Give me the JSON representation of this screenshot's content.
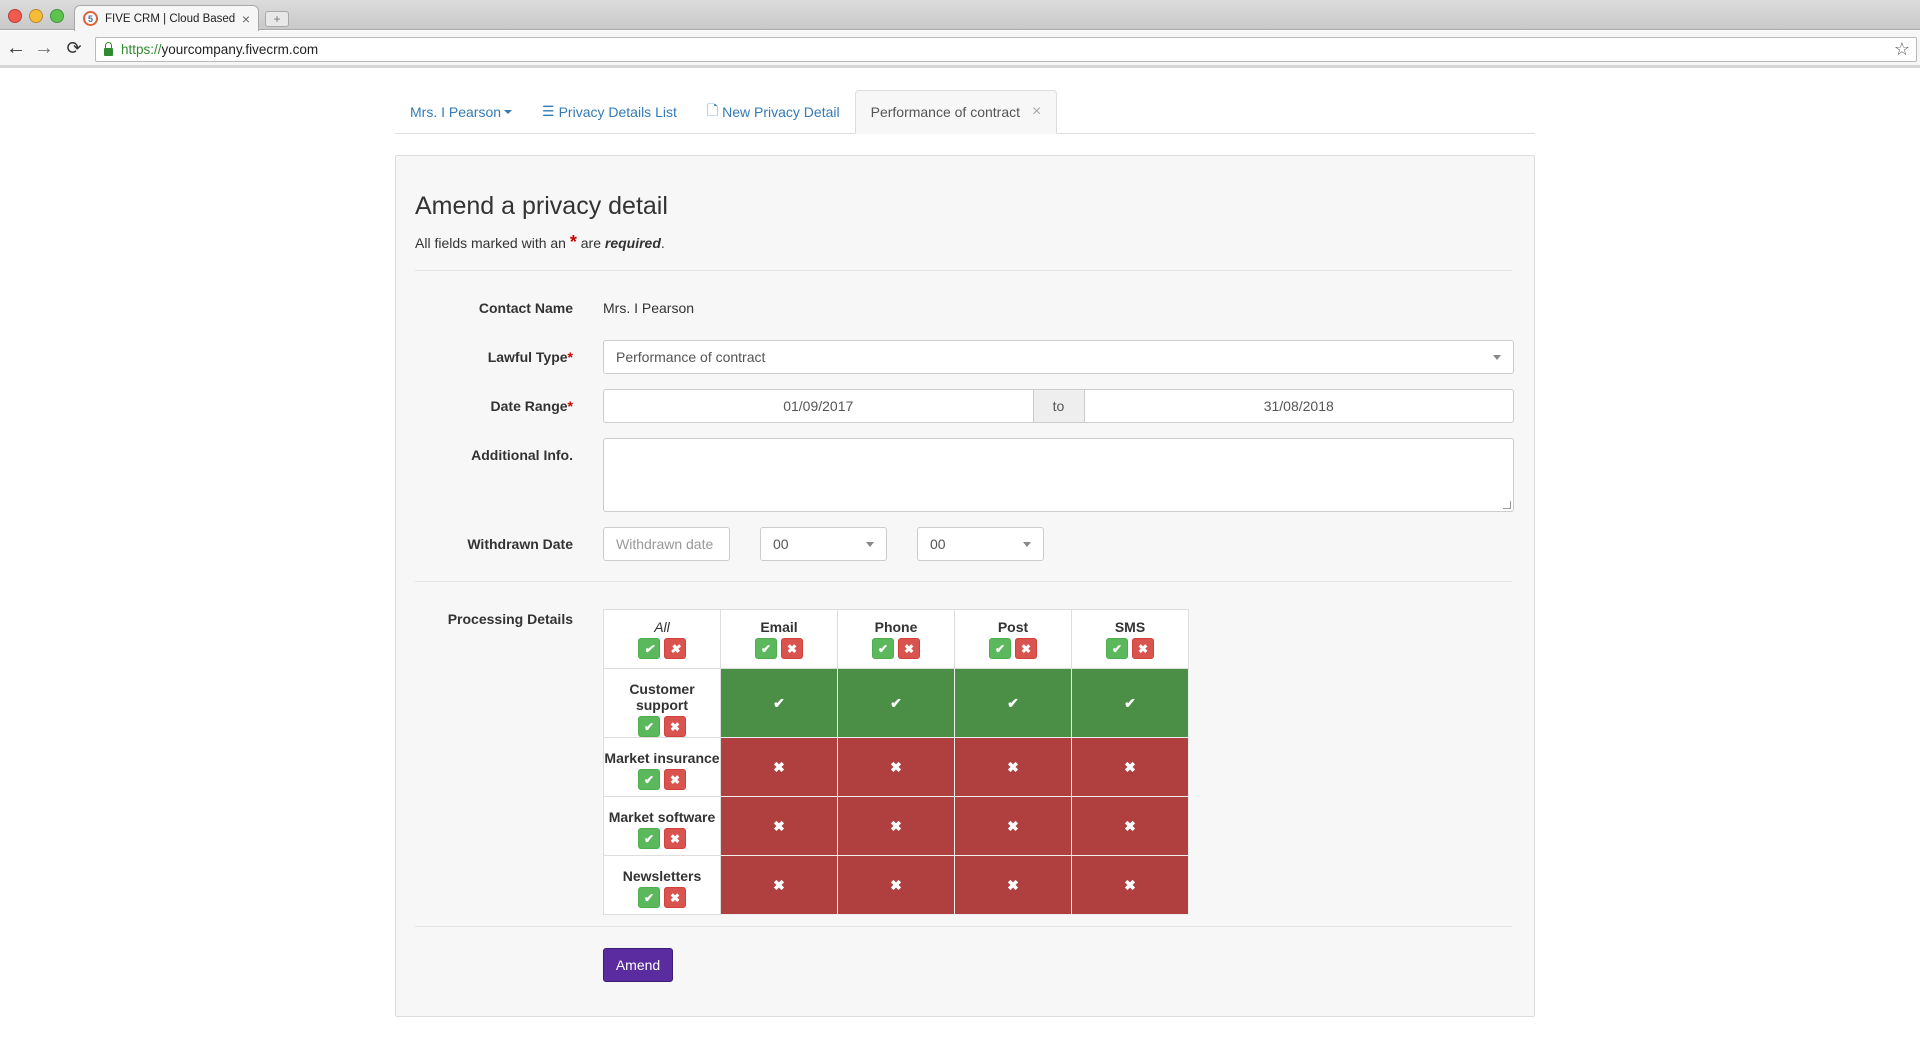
{
  "browser": {
    "tab_title": "FIVE CRM | Cloud Based Sa",
    "favicon_text": "5",
    "url_protocol": "https://",
    "url_host": "yourcompany.fivecrm.com"
  },
  "page_tabs": {
    "contact": "Mrs. I Pearson",
    "list": "Privacy Details List",
    "new": "New Privacy Detail",
    "active": "Performance of contract"
  },
  "form": {
    "title": "Amend a privacy detail",
    "required_note_pre": "All fields marked with an",
    "required_note_star": "*",
    "required_note_mid": " are ",
    "required_note_bold": "required",
    "required_note_end": ".",
    "contact_name_label": "Contact Name",
    "contact_name_value": "Mrs. I Pearson",
    "lawful_type_label": "Lawful Type",
    "lawful_type_value": "Performance of contract",
    "date_range_label": "Date Range",
    "date_from": "01/09/2017",
    "date_to_label": "to",
    "date_to": "31/08/2018",
    "additional_info_label": "Additional Info.",
    "withdrawn_date_label": "Withdrawn Date",
    "withdrawn_date_placeholder": "Withdrawn date",
    "withdrawn_hour": "00",
    "withdrawn_minute": "00",
    "processing_label": "Processing Details",
    "required_star": "*",
    "amend_button": "Amend"
  },
  "matrix": {
    "all_label": "All",
    "channels": [
      "Email",
      "Phone",
      "Post",
      "SMS"
    ],
    "rows": [
      {
        "name": "Customer support",
        "states": [
          "on",
          "on",
          "on",
          "on"
        ]
      },
      {
        "name": "Market insurance",
        "states": [
          "off",
          "off",
          "off",
          "off"
        ]
      },
      {
        "name": "Market software",
        "states": [
          "off",
          "off",
          "off",
          "off"
        ]
      },
      {
        "name": "Newsletters",
        "states": [
          "off",
          "off",
          "off",
          "off"
        ]
      }
    ]
  },
  "colors": {
    "granted": "#4a8f45",
    "denied": "#b04040",
    "primary": "#5a2ca0",
    "link": "#337ab7"
  }
}
